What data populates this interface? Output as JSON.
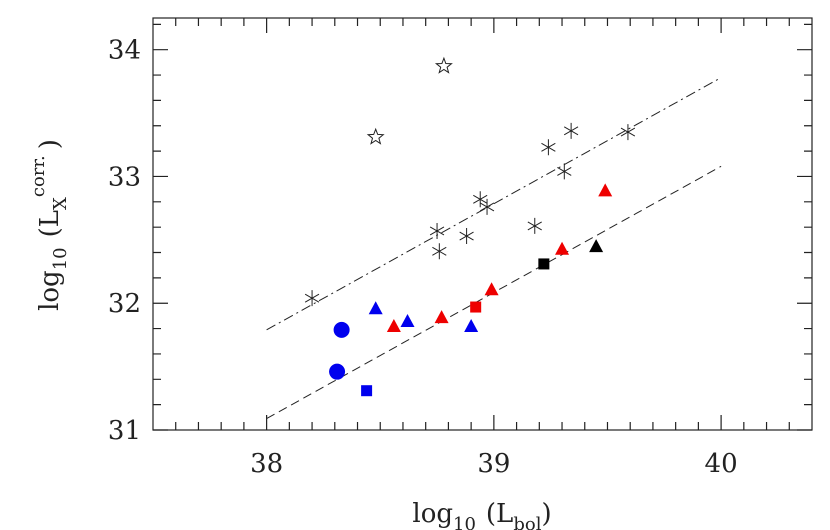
{
  "chart_data": {
    "type": "scatter",
    "x_label": [
      "log",
      "10",
      "(L",
      "bol",
      ")"
    ],
    "y_label": [
      "log",
      "10",
      "(L",
      "X",
      "corr.",
      ")"
    ],
    "xlim": [
      37.5,
      40.4
    ],
    "ylim": [
      31,
      34.25
    ],
    "xticks": [
      38,
      39,
      40
    ],
    "yticks": [
      31,
      32,
      33,
      34
    ],
    "xminorticks": [
      37.6,
      37.7,
      37.8,
      37.9,
      38.1,
      38.2,
      38.3,
      38.4,
      38.5,
      38.6,
      38.7,
      38.8,
      38.9,
      39.1,
      39.2,
      39.3,
      39.4,
      39.5,
      39.6,
      39.7,
      39.8,
      39.9,
      40.1,
      40.2,
      40.3
    ],
    "yminorticks": [
      31.2,
      31.4,
      31.6,
      31.8,
      32.2,
      32.4,
      32.6,
      32.8,
      33.2,
      33.4,
      33.6,
      33.8,
      34.2
    ],
    "series": [
      {
        "marker": "line",
        "dash": "dashdot",
        "color": "#222",
        "x": [
          38,
          40
        ],
        "values": [
          31.79,
          33.78
        ]
      },
      {
        "marker": "line",
        "dash": "dashed",
        "color": "#222",
        "x": [
          38,
          40
        ],
        "values": [
          31.09,
          33.08
        ]
      },
      {
        "marker": "star-open",
        "color": "#222",
        "x": [
          38.48,
          38.78
        ],
        "values": [
          33.31,
          33.87
        ]
      },
      {
        "marker": "asterisk",
        "color": "#222",
        "x": [
          38.2,
          38.75,
          38.76,
          38.88,
          38.94,
          38.97,
          39.18,
          39.24,
          39.31,
          39.34,
          39.59
        ],
        "values": [
          32.04,
          32.57,
          32.41,
          32.53,
          32.82,
          32.76,
          32.61,
          33.23,
          33.04,
          33.36,
          33.35
        ]
      },
      {
        "marker": "circle",
        "color": "#0000ee",
        "x": [
          38.33,
          38.31
        ],
        "values": [
          31.79,
          31.46
        ]
      },
      {
        "marker": "square",
        "color": "#0000ee",
        "x": [
          38.44
        ],
        "values": [
          31.31
        ]
      },
      {
        "marker": "triangle",
        "color": "#0000ee",
        "x": [
          38.48,
          38.62,
          38.9
        ],
        "values": [
          31.96,
          31.86,
          31.82
        ]
      },
      {
        "marker": "triangle",
        "color": "#ee0000",
        "x": [
          38.56,
          38.77,
          38.99,
          39.3,
          39.49
        ],
        "values": [
          31.82,
          31.89,
          32.11,
          32.43,
          32.89
        ]
      },
      {
        "marker": "square",
        "color": "#ee0000",
        "x": [
          38.92
        ],
        "values": [
          31.97
        ]
      },
      {
        "marker": "square",
        "color": "#000000",
        "x": [
          39.22
        ],
        "values": [
          32.31
        ]
      },
      {
        "marker": "triangle",
        "color": "#000000",
        "x": [
          39.45
        ],
        "values": [
          32.45
        ]
      }
    ]
  }
}
